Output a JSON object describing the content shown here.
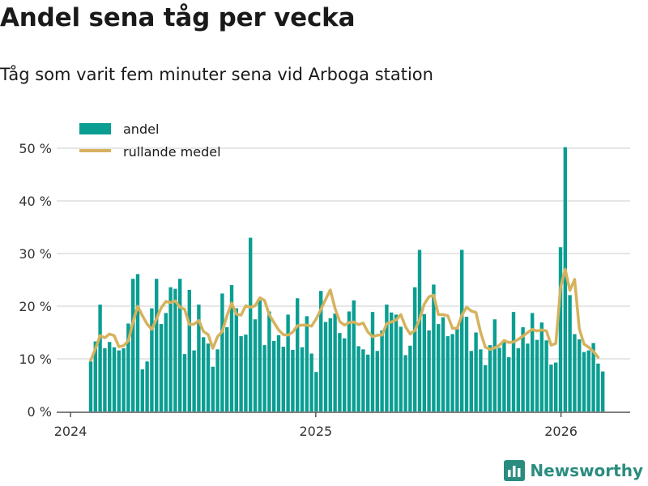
{
  "header": {
    "title": "Andel sena tåg per vecka",
    "subtitle": "Tåg som varit fem minuter sena vid Arboga station"
  },
  "brand": {
    "name": "Newsworthy"
  },
  "colors": {
    "bar": "#0a9e92",
    "line": "#d6b25e",
    "grid": "#dedede",
    "axis": "#555555",
    "brand": "#2a8c7e"
  },
  "chart_data": {
    "type": "bar",
    "title": "Andel sena tåg per vecka",
    "subtitle": "Tåg som varit fem minuter sena vid Arboga station",
    "xlabel": "",
    "ylabel": "",
    "ylim": [
      0,
      50
    ],
    "y_ticks": [
      {
        "value": 0,
        "label": "0 %"
      },
      {
        "value": 10,
        "label": "10 %"
      },
      {
        "value": 20,
        "label": "20 %"
      },
      {
        "value": 30,
        "label": "30 %"
      },
      {
        "value": 40,
        "label": "40 %"
      },
      {
        "value": 50,
        "label": "50 %"
      }
    ],
    "x_ticks": [
      {
        "week_index": -4.3,
        "label": "2024"
      },
      {
        "week_index": 47.9,
        "label": "2025"
      },
      {
        "week_index": 100.1,
        "label": "2026"
      }
    ],
    "legend": {
      "placement": "top-left",
      "entries": [
        "andel",
        "rullande medel"
      ]
    },
    "series": [
      {
        "name": "andel",
        "type": "bar",
        "values": [
          9.5,
          13.3,
          20.3,
          12,
          13.2,
          12.2,
          11.6,
          12,
          16.7,
          25.2,
          26.1,
          8,
          9.5,
          19.6,
          25.2,
          16.6,
          18.7,
          23.6,
          23.3,
          25.2,
          10.9,
          23.1,
          11.6,
          20.3,
          14.1,
          12.9,
          8.5,
          11.8,
          22.4,
          16,
          24,
          19.6,
          14.3,
          14.6,
          33,
          17.5,
          21.1,
          12.6,
          19,
          13.4,
          14.5,
          12.3,
          18.4,
          11.7,
          21.5,
          12.2,
          18.1,
          11,
          7.5,
          22.9,
          17,
          17.7,
          18.6,
          14.9,
          13.9,
          19,
          21.1,
          12.4,
          11.8,
          10.8,
          18.9,
          11.5,
          15.4,
          20.3,
          18.8,
          18.4,
          16.1,
          10.7,
          12.5,
          23.6,
          30.7,
          18.5,
          15.4,
          24.1,
          16.6,
          17.9,
          14.3,
          14.7,
          15.7,
          30.7,
          18,
          11.5,
          15,
          11.8,
          8.8,
          12.6,
          17.5,
          12.1,
          13.4,
          10.3,
          18.9,
          12,
          16,
          12.9,
          18.7,
          13.6,
          16.9,
          13.5,
          8.9,
          9.3,
          31.2,
          50.2,
          22.1,
          14.7,
          13.7,
          11.3,
          11.6,
          13,
          9.1,
          7.6
        ],
        "x_start_week": 0
      },
      {
        "name": "rullande medel",
        "type": "line",
        "values": [
          9.7,
          11.9,
          14.4,
          14,
          14.7,
          14.4,
          12.3,
          12.5,
          13.4,
          17,
          20,
          18.2,
          16.6,
          15.6,
          17.6,
          19.7,
          20.9,
          20.7,
          21,
          19.8,
          19.4,
          16.5,
          16.6,
          17.3,
          15.2,
          14.6,
          12,
          14.2,
          15.2,
          18.2,
          20.6,
          18.5,
          18.3,
          20.1,
          19.8,
          20.1,
          21.6,
          21.1,
          18.4,
          16.9,
          15.5,
          14.6,
          14.5,
          15.1,
          16.3,
          16.4,
          16.4,
          16.2,
          17.6,
          19.4,
          21.3,
          23.1,
          19.6,
          17.1,
          16.4,
          16.9,
          17,
          16.5,
          16.8,
          15.1,
          14.2,
          14.5,
          14.5,
          16.7,
          17,
          17.4,
          18.4,
          16.1,
          14.7,
          15.4,
          17.5,
          20.4,
          21.8,
          22.1,
          18.4,
          18.4,
          18.2,
          15.8,
          15.8,
          18.3,
          19.8,
          19.1,
          18.8,
          15,
          12.2,
          11.8,
          12.1,
          12.6,
          13.5,
          13.1,
          13.2,
          13.7,
          14.3,
          15,
          15.6,
          15.3,
          15.5,
          15.3,
          12.6,
          12.9,
          23.5,
          27,
          23,
          25.1,
          15.7,
          12.8,
          12.2,
          11.4,
          10.3
        ]
      }
    ]
  }
}
